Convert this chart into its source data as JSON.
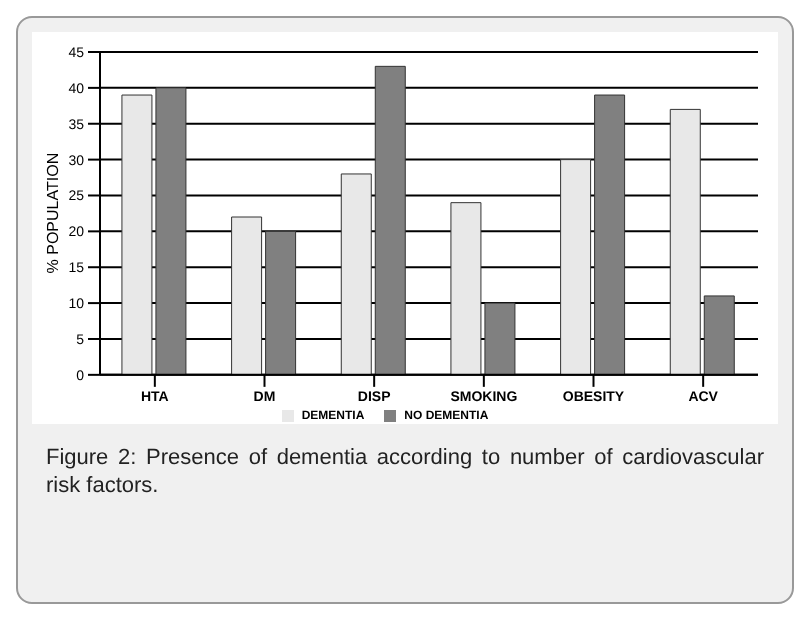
{
  "chart_data": {
    "type": "bar",
    "ylabel": "% POPULATION",
    "categories": [
      "HTA",
      "DM",
      "DISP",
      "SMOKING",
      "OBESITY",
      "ACV"
    ],
    "series": [
      {
        "name": "DEMENTIA",
        "color": "#e8e8e8",
        "values": [
          39,
          22,
          28,
          24,
          30,
          37
        ]
      },
      {
        "name": "NO DEMENTIA",
        "color": "#808080",
        "values": [
          40,
          20,
          43,
          10,
          39,
          11
        ]
      }
    ],
    "ylim": [
      0,
      45
    ],
    "yticks": [
      0,
      5,
      10,
      15,
      20,
      25,
      30,
      35,
      40,
      45
    ],
    "grid": "y",
    "legend": "bottom",
    "annotations": [
      "Figure 2: Presence of dementia according to number of cardiovascular risk factors."
    ]
  }
}
